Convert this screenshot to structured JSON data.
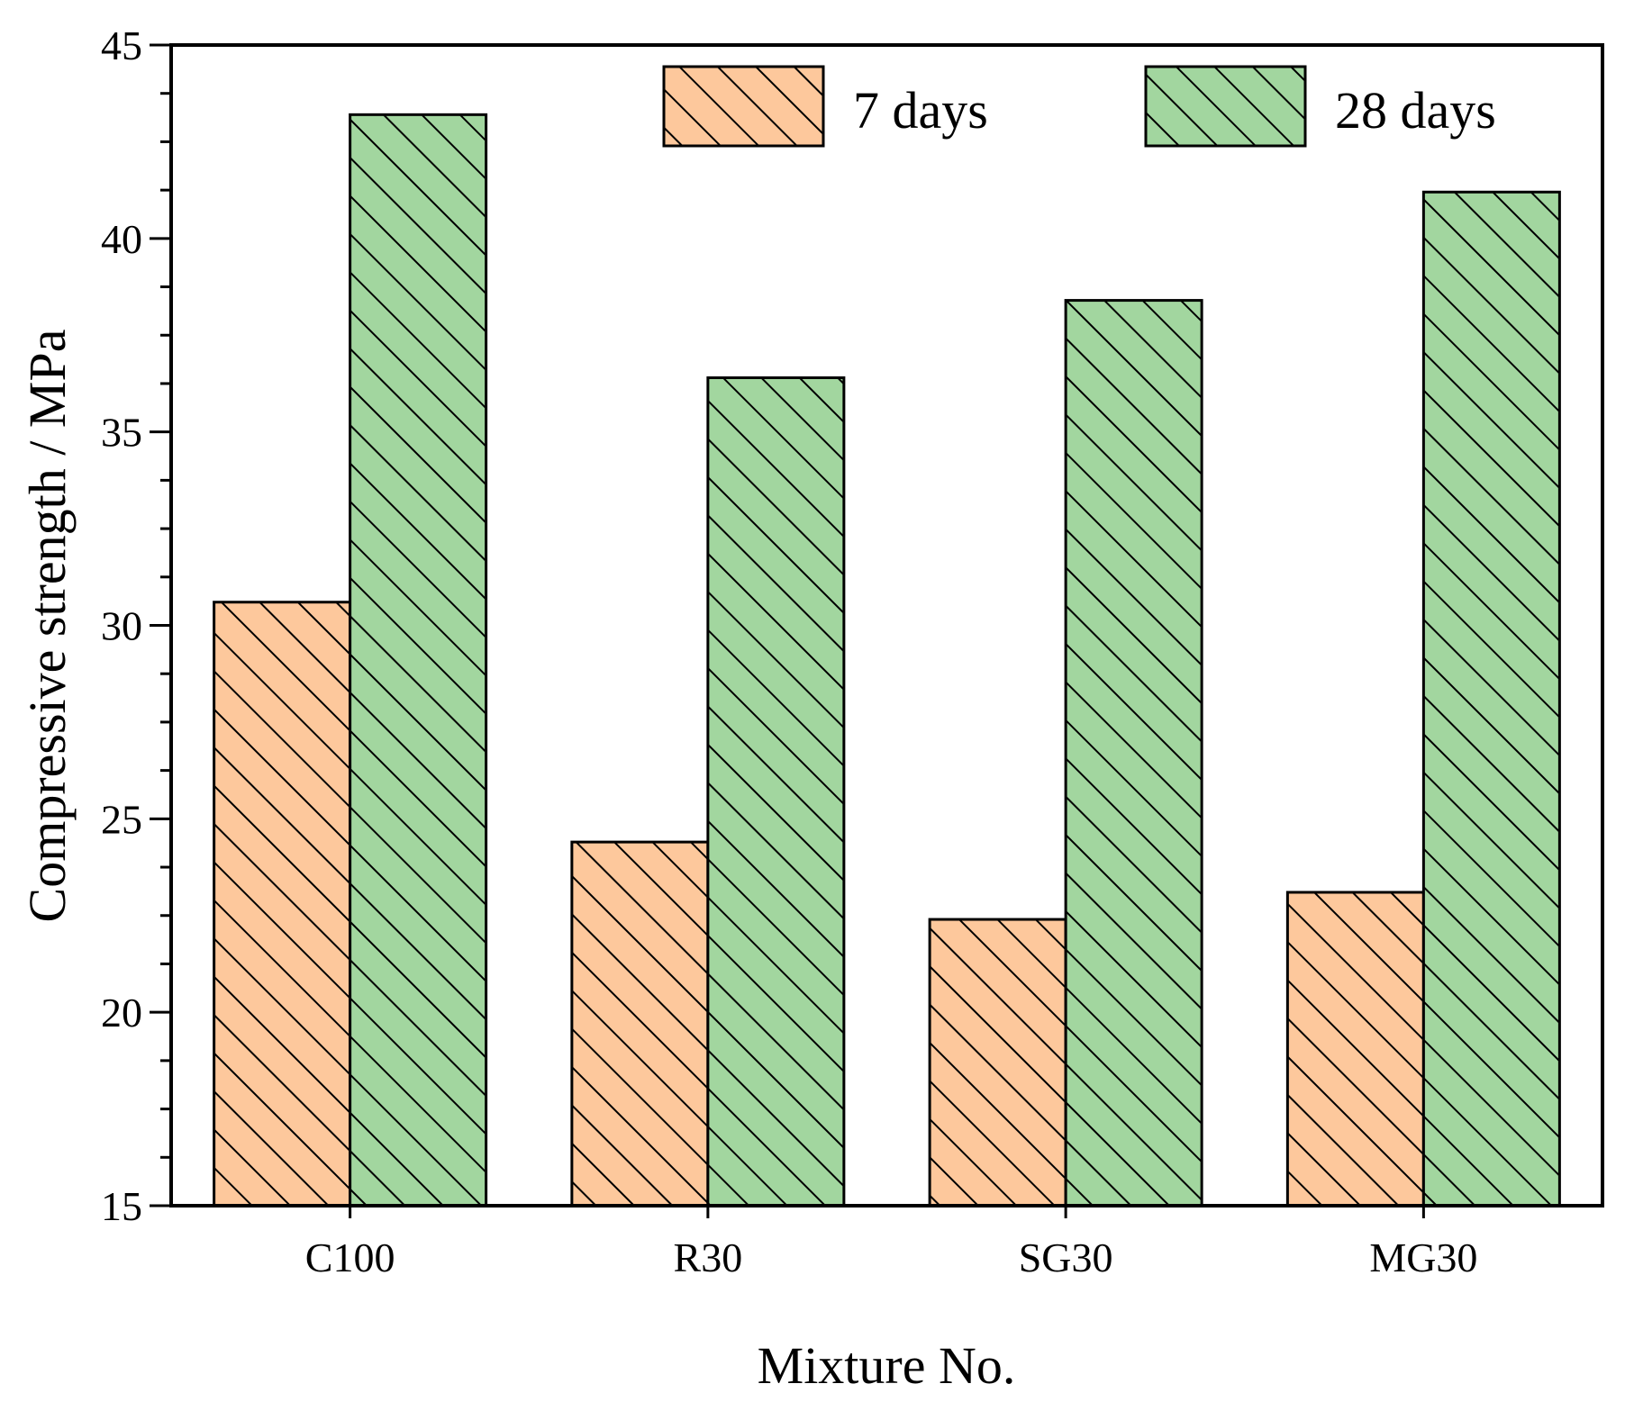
{
  "chart_data": {
    "type": "bar",
    "title": "",
    "xlabel": "Mixture No.",
    "ylabel": "Compressive strength / MPa",
    "categories": [
      "C100",
      "R30",
      "SG30",
      "MG30"
    ],
    "ylim": [
      15,
      45
    ],
    "yticks": [
      15,
      20,
      25,
      30,
      35,
      40,
      45
    ],
    "grid": false,
    "legend_position": "top-right",
    "series": [
      {
        "name": "7 days",
        "values": [
          30.6,
          24.4,
          22.4,
          23.1
        ],
        "color": "#fdc89c",
        "pattern": "diagonal-hatch"
      },
      {
        "name": "28 days",
        "values": [
          43.2,
          36.4,
          38.4,
          41.2
        ],
        "color": "#a2d69f",
        "pattern": "diagonal-hatch"
      }
    ]
  }
}
